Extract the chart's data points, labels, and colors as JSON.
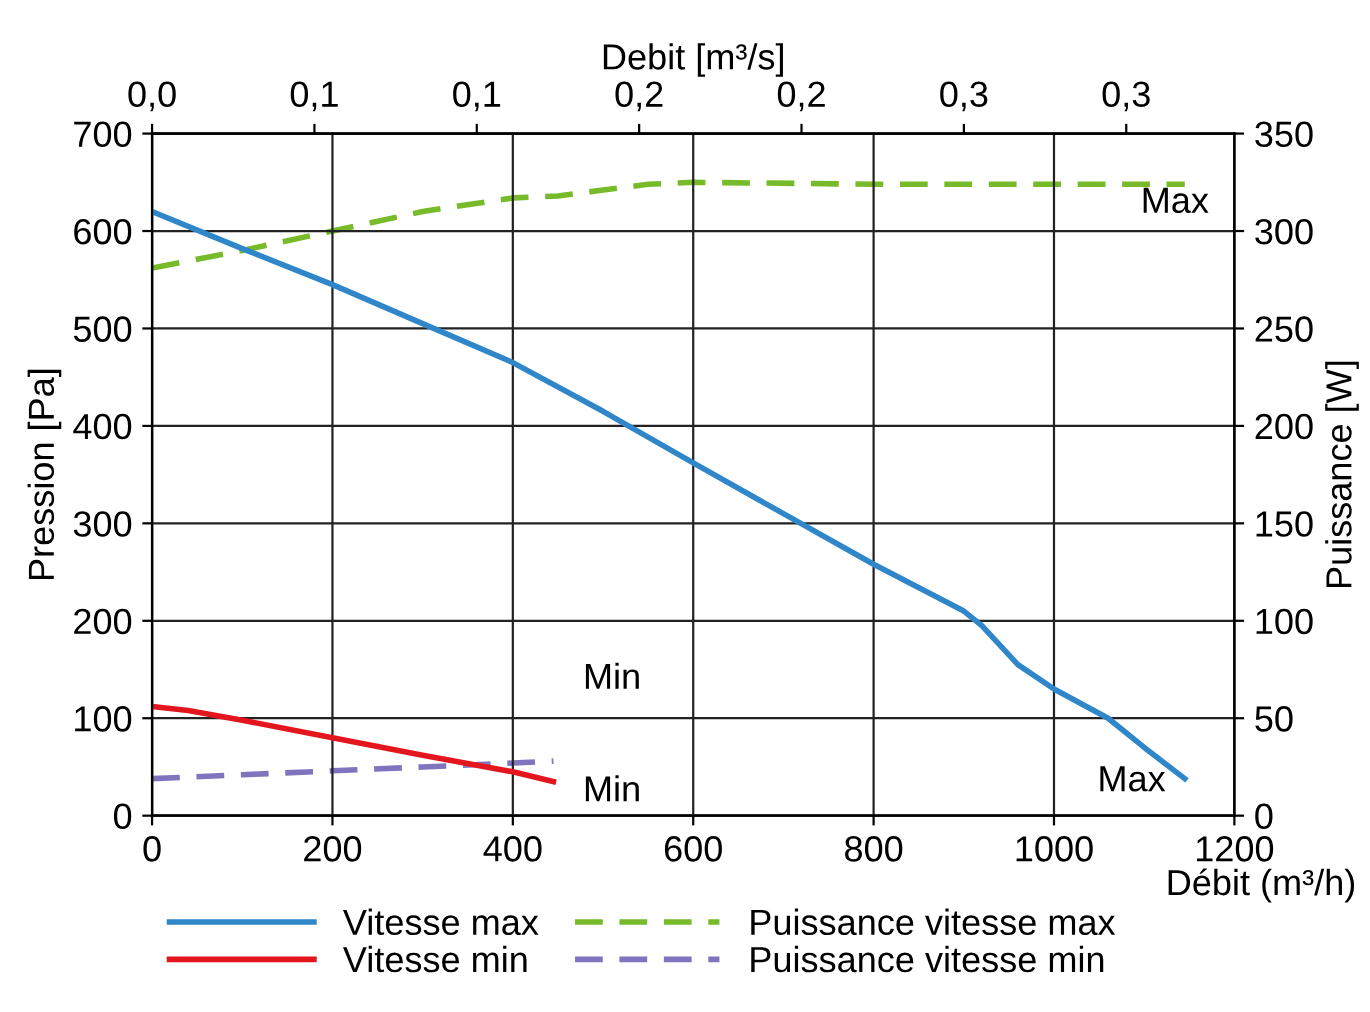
{
  "chart_data": {
    "type": "line",
    "xlabel": "Débit (m³/h)",
    "ylabel": "Pression [Pa]",
    "y2label": "Puissance [W]",
    "x2label": "Debit [m³/s]",
    "xlim": [
      0,
      1200
    ],
    "xticks": [
      0,
      200,
      400,
      600,
      800,
      1000,
      1200
    ],
    "ylim": [
      0,
      700
    ],
    "yticks": [
      0,
      100,
      200,
      300,
      400,
      500,
      600,
      700
    ],
    "y2lim": [
      0,
      350
    ],
    "y2ticks": [
      0,
      50,
      100,
      150,
      200,
      250,
      300,
      350
    ],
    "x2lim": [
      0,
      0.3333
    ],
    "x2ticks": [
      {
        "value": 0,
        "label": "0,0"
      },
      {
        "value": 0.05,
        "label": "0,1"
      },
      {
        "value": 0.1,
        "label": "0,1"
      },
      {
        "value": 0.15,
        "label": "0,2"
      },
      {
        "value": 0.2,
        "label": "0,2"
      },
      {
        "value": 0.25,
        "label": "0,3"
      },
      {
        "value": 0.3,
        "label": "0,3"
      }
    ],
    "grid": true,
    "legend": "bottom",
    "series": [
      {
        "name": "Vitesse max",
        "color": "#2f86c8",
        "line_style": "solid",
        "x": [
          0,
          100,
          200,
          300,
          400,
          500,
          600,
          700,
          800,
          900,
          920,
          960,
          1000,
          1060,
          1100,
          1145
        ],
        "values": [
          620,
          582,
          545,
          505,
          465,
          415,
          362,
          310,
          258,
          210,
          195,
          155,
          130,
          100,
          70,
          38
        ]
      },
      {
        "name": "Puissance vitesse max",
        "color": "#77bb2a",
        "line_style": "dashed",
        "axis": "y2",
        "x": [
          0,
          100,
          200,
          300,
          400,
          450,
          500,
          550,
          600,
          800,
          1000,
          1145
        ],
        "values": [
          281,
          290,
          300,
          310,
          317,
          318,
          321,
          324,
          325,
          324,
          324,
          324
        ]
      },
      {
        "name": "Vitesse min",
        "color": "#e3161e",
        "line_style": "solid",
        "x": [
          0,
          40,
          100,
          200,
          300,
          400,
          445
        ],
        "values": [
          112,
          108,
          98,
          80,
          62,
          45,
          35
        ]
      },
      {
        "name": "Puissance vitesse min",
        "color": "#8074bf",
        "line_style": "dashed",
        "axis": "y2",
        "x": [
          0,
          100,
          200,
          300,
          400,
          445
        ],
        "values": [
          19,
          21,
          23,
          25,
          27,
          28
        ]
      }
    ],
    "annotations": [
      "Max",
      "Min",
      "Min",
      "Max"
    ]
  }
}
